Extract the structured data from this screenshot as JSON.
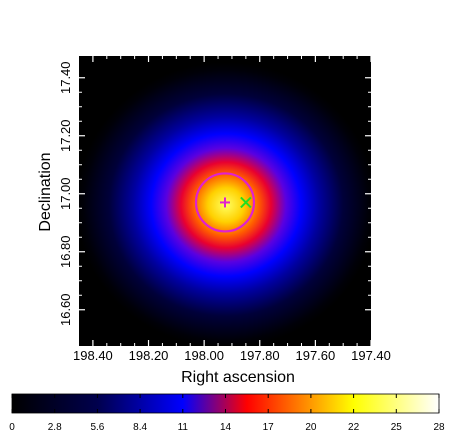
{
  "chart_data": {
    "type": "heatmap",
    "title": "",
    "xlabel": "Right ascension",
    "ylabel": "Declination",
    "x_ticks": [
      "198.40",
      "198.20",
      "198.00",
      "197.80",
      "197.60",
      "197.40"
    ],
    "y_ticks": [
      "16.60",
      "16.80",
      "17.00",
      "17.20",
      "17.40"
    ],
    "x_tick_values": [
      198.4,
      198.2,
      198.0,
      197.8,
      197.6,
      197.4
    ],
    "y_tick_values": [
      16.6,
      16.8,
      17.0,
      17.2,
      17.4
    ],
    "xlim": [
      198.45,
      197.4
    ],
    "ylim": [
      16.475,
      17.475
    ],
    "x_inverted": true,
    "colorbar": {
      "ticks": [
        "0",
        "2.8",
        "5.6",
        "8.4",
        "11",
        "14",
        "17",
        "20",
        "22",
        "25",
        "28"
      ],
      "tick_values": [
        0,
        2.8,
        5.6,
        8.4,
        11.2,
        14,
        16.8,
        19.6,
        22.4,
        25.2,
        28
      ],
      "range": [
        0,
        28
      ],
      "colormap": [
        "#000000",
        "#00004d",
        "#0000ff",
        "#ff0000",
        "#ffff00",
        "#ffffff"
      ]
    },
    "source": {
      "peak_ra": 197.925,
      "peak_dec": 16.97,
      "peak_value": 28
    },
    "markers": [
      {
        "type": "circle",
        "ra": 197.925,
        "dec": 16.97,
        "color": "#e020d0"
      },
      {
        "type": "plus",
        "ra": 197.925,
        "dec": 16.97,
        "color": "#e020d0"
      },
      {
        "type": "cross",
        "ra": 197.85,
        "dec": 16.97,
        "color": "#22dd22"
      }
    ]
  }
}
